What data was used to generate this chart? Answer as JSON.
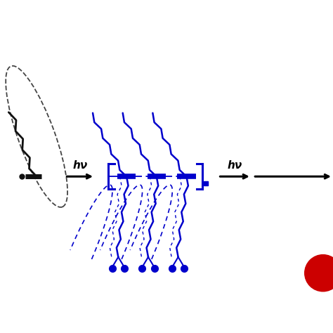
{
  "background_color": "#ffffff",
  "arrow_color": "#000000",
  "hv_label": "hν",
  "hv_fontsize": 11,
  "black_chain_color": "#111111",
  "blue_chain_color": "#0000cc",
  "blue_dot_color": "#0000cc",
  "red_dot_color": "#cc0000",
  "dashed_black_color": "#444444",
  "dashed_blue_color": "#0000cc",
  "bracket_color": "#0000cc",
  "figsize": [
    4.74,
    4.74
  ],
  "dpi": 100
}
